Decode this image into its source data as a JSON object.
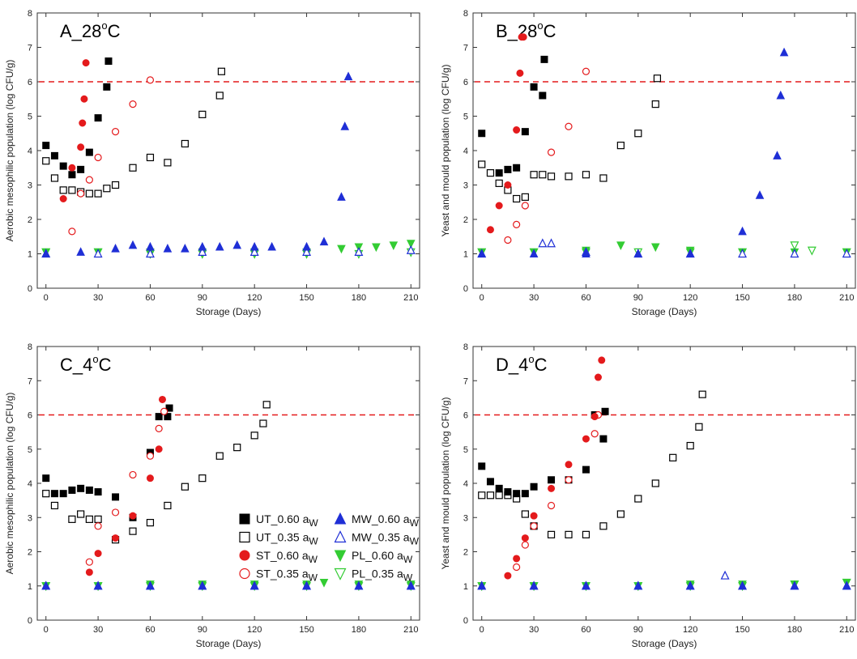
{
  "series_styles": [
    {
      "key": "UT_060",
      "label": "UT_0.60 aW",
      "label_main": "UT_0.60 a",
      "label_sub": "W",
      "color": "#000000",
      "marker": "square",
      "filled": true
    },
    {
      "key": "UT_035",
      "label": "UT_0.35 aW",
      "label_main": "UT_0.35 a",
      "label_sub": "W",
      "color": "#000000",
      "marker": "square",
      "filled": false
    },
    {
      "key": "ST_060",
      "label": "ST_0.60 aW",
      "label_main": "ST_0.60 a",
      "label_sub": "W",
      "color": "#e41a1c",
      "marker": "circle",
      "filled": true
    },
    {
      "key": "ST_035",
      "label": "ST_0.35 aW",
      "label_main": "ST_0.35 a",
      "label_sub": "W",
      "color": "#e41a1c",
      "marker": "circle",
      "filled": false
    },
    {
      "key": "MW_060",
      "label": "MW_0.60 aW",
      "label_main": "MW_0.60 a",
      "label_sub": "W",
      "color": "#1f2fd6",
      "marker": "triangle-up",
      "filled": true
    },
    {
      "key": "MW_035",
      "label": "MW_0.35 aW",
      "label_main": "MW_0.35 a",
      "label_sub": "W",
      "color": "#1f2fd6",
      "marker": "triangle-up",
      "filled": false
    },
    {
      "key": "PL_060",
      "label": "PL_0.60 aW",
      "label_main": "PL_0.60 a",
      "label_sub": "W",
      "color": "#33cc33",
      "marker": "triangle-down",
      "filled": true
    },
    {
      "key": "PL_035",
      "label": "PL_0.35 aW",
      "label_main": "PL_0.35 a",
      "label_sub": "W",
      "color": "#33cc33",
      "marker": "triangle-down",
      "filled": false
    }
  ],
  "chart_data": [
    {
      "id": "A",
      "type": "scatter",
      "title": "A_28",
      "title_sup": "o",
      "title_unit": "C",
      "xlabel": "Storage (Days)",
      "ylabel": "Aerobic mesophilic population (log CFU/g)",
      "xlim": [
        -5,
        215
      ],
      "ylim": [
        0,
        8
      ],
      "xticks": [
        0,
        30,
        60,
        90,
        120,
        150,
        180,
        210
      ],
      "yticks": [
        0,
        1,
        2,
        3,
        4,
        5,
        6,
        7,
        8
      ],
      "threshold": 6,
      "legend_position": "none",
      "series": [
        {
          "key": "UT_060",
          "x": [
            0,
            5,
            10,
            15,
            20,
            25,
            30,
            35,
            36
          ],
          "y": [
            4.15,
            3.85,
            3.55,
            3.3,
            3.45,
            3.95,
            4.95,
            5.85,
            6.6
          ]
        },
        {
          "key": "UT_035",
          "x": [
            0,
            5,
            10,
            15,
            20,
            25,
            30,
            35,
            40,
            50,
            60,
            70,
            80,
            90,
            100,
            101
          ],
          "y": [
            3.7,
            3.2,
            2.85,
            2.85,
            2.8,
            2.75,
            2.75,
            2.9,
            3.0,
            3.5,
            3.8,
            3.65,
            4.2,
            5.05,
            5.6,
            6.3
          ]
        },
        {
          "key": "ST_060",
          "x": [
            10,
            15,
            20,
            21,
            22,
            23
          ],
          "y": [
            2.6,
            3.5,
            4.1,
            4.8,
            5.5,
            6.55
          ]
        },
        {
          "key": "ST_035",
          "x": [
            15,
            20,
            25,
            30,
            40,
            50,
            60
          ],
          "y": [
            1.65,
            2.75,
            3.15,
            3.8,
            4.55,
            5.35,
            6.05
          ]
        },
        {
          "key": "MW_060",
          "x": [
            0,
            20,
            40,
            50,
            60,
            70,
            80,
            90,
            100,
            110,
            120,
            130,
            150,
            160,
            170,
            172,
            174
          ],
          "y": [
            1.0,
            1.05,
            1.15,
            1.25,
            1.2,
            1.15,
            1.15,
            1.2,
            1.2,
            1.25,
            1.2,
            1.2,
            1.2,
            1.35,
            2.65,
            4.7,
            6.15
          ]
        },
        {
          "key": "MW_035",
          "x": [
            0,
            30,
            60,
            90,
            120,
            150,
            180,
            210
          ],
          "y": [
            1.0,
            1.0,
            1.0,
            1.05,
            1.05,
            1.05,
            1.05,
            1.1
          ]
        },
        {
          "key": "PL_060",
          "x": [
            0,
            30,
            60,
            90,
            120,
            150,
            170,
            180,
            190,
            200,
            210
          ],
          "y": [
            1.05,
            1.05,
            1.05,
            1.05,
            1.05,
            1.05,
            1.15,
            1.2,
            1.2,
            1.25,
            1.3
          ]
        },
        {
          "key": "PL_035",
          "x": [
            0,
            30,
            60,
            90,
            120,
            150,
            180,
            210
          ],
          "y": [
            1.05,
            1.05,
            1.0,
            1.0,
            1.0,
            1.0,
            1.0,
            1.05
          ]
        }
      ]
    },
    {
      "id": "B",
      "type": "scatter",
      "title": "B_28",
      "title_sup": "o",
      "title_unit": "C",
      "xlabel": "Storage (Days)",
      "ylabel": "Yeast and mould population (log CFU/g)",
      "xlim": [
        -5,
        215
      ],
      "ylim": [
        0,
        8
      ],
      "xticks": [
        0,
        30,
        60,
        90,
        120,
        150,
        180,
        210
      ],
      "yticks": [
        0,
        1,
        2,
        3,
        4,
        5,
        6,
        7,
        8
      ],
      "threshold": 6,
      "legend_position": "none",
      "series": [
        {
          "key": "UT_060",
          "x": [
            0,
            10,
            15,
            20,
            25,
            30,
            35,
            36
          ],
          "y": [
            4.5,
            3.35,
            3.45,
            3.5,
            4.55,
            5.85,
            5.6,
            6.65
          ]
        },
        {
          "key": "UT_035",
          "x": [
            0,
            5,
            10,
            15,
            20,
            25,
            30,
            35,
            40,
            50,
            60,
            70,
            80,
            90,
            100,
            101
          ],
          "y": [
            3.6,
            3.35,
            3.05,
            2.85,
            2.6,
            2.65,
            3.3,
            3.3,
            3.25,
            3.25,
            3.3,
            3.2,
            4.15,
            4.5,
            5.35,
            6.1
          ]
        },
        {
          "key": "ST_060",
          "x": [
            5,
            10,
            15,
            20,
            22,
            23,
            24
          ],
          "y": [
            1.7,
            2.4,
            3.0,
            4.6,
            6.25,
            7.3,
            7.3
          ]
        },
        {
          "key": "ST_035",
          "x": [
            15,
            20,
            25,
            40,
            50,
            60
          ],
          "y": [
            1.4,
            1.85,
            2.4,
            3.95,
            4.7,
            6.3
          ]
        },
        {
          "key": "MW_060",
          "x": [
            0,
            30,
            60,
            90,
            120,
            150,
            160,
            170,
            172,
            174
          ],
          "y": [
            1.0,
            1.0,
            1.0,
            1.0,
            1.0,
            1.65,
            2.7,
            3.85,
            5.6,
            6.85
          ]
        },
        {
          "key": "MW_035",
          "x": [
            0,
            35,
            40,
            60,
            90,
            120,
            150,
            180,
            210
          ],
          "y": [
            1.0,
            1.3,
            1.3,
            1.05,
            1.0,
            1.0,
            1.0,
            1.0,
            1.0
          ]
        },
        {
          "key": "PL_060",
          "x": [
            0,
            30,
            60,
            80,
            100,
            120,
            150,
            180,
            210
          ],
          "y": [
            1.05,
            1.05,
            1.1,
            1.25,
            1.2,
            1.1,
            1.05,
            1.05,
            1.05
          ]
        },
        {
          "key": "PL_035",
          "x": [
            0,
            30,
            60,
            90,
            120,
            150,
            180,
            190,
            210
          ],
          "y": [
            1.05,
            1.05,
            1.05,
            1.05,
            1.05,
            1.05,
            1.25,
            1.1,
            1.05
          ]
        }
      ]
    },
    {
      "id": "C",
      "type": "scatter",
      "title": "C_4",
      "title_sup": "o",
      "title_unit": "C",
      "xlabel": "Storage (Days)",
      "ylabel": "Aerobic mesophilic population (log CFU/g)",
      "xlim": [
        -5,
        215
      ],
      "ylim": [
        0,
        8
      ],
      "xticks": [
        0,
        30,
        60,
        90,
        120,
        150,
        180,
        210
      ],
      "yticks": [
        0,
        1,
        2,
        3,
        4,
        5,
        6,
        7,
        8
      ],
      "threshold": 6,
      "legend_position": "center-right",
      "series": [
        {
          "key": "UT_060",
          "x": [
            0,
            5,
            10,
            15,
            20,
            25,
            30,
            40,
            50,
            60,
            65,
            70,
            71
          ],
          "y": [
            4.15,
            3.7,
            3.7,
            3.8,
            3.85,
            3.8,
            3.75,
            3.6,
            3.0,
            4.9,
            5.95,
            5.95,
            6.2
          ]
        },
        {
          "key": "UT_035",
          "x": [
            0,
            5,
            15,
            20,
            25,
            30,
            40,
            50,
            60,
            70,
            80,
            90,
            100,
            110,
            120,
            125,
            127
          ],
          "y": [
            3.7,
            3.35,
            2.95,
            3.1,
            2.95,
            2.95,
            2.35,
            2.6,
            2.85,
            3.35,
            3.9,
            4.15,
            4.8,
            5.05,
            5.4,
            5.75,
            6.3
          ]
        },
        {
          "key": "ST_060",
          "x": [
            25,
            30,
            40,
            50,
            60,
            65,
            67
          ],
          "y": [
            1.4,
            1.95,
            2.4,
            3.05,
            4.15,
            5.0,
            6.45
          ]
        },
        {
          "key": "ST_035",
          "x": [
            25,
            30,
            40,
            50,
            60,
            65,
            68
          ],
          "y": [
            1.7,
            2.75,
            3.15,
            4.25,
            4.8,
            5.6,
            6.1
          ]
        },
        {
          "key": "MW_060",
          "x": [
            0,
            30,
            60,
            90,
            120,
            150,
            180,
            210
          ],
          "y": [
            1.0,
            1.0,
            1.0,
            1.0,
            1.0,
            1.0,
            1.0,
            1.0
          ]
        },
        {
          "key": "MW_035",
          "x": [
            0,
            30,
            60,
            90,
            120,
            150,
            180,
            210
          ],
          "y": [
            1.0,
            1.0,
            1.0,
            1.0,
            1.0,
            1.0,
            1.0,
            1.0
          ]
        },
        {
          "key": "PL_060",
          "x": [
            0,
            30,
            60,
            90,
            120,
            150,
            160,
            180,
            210
          ],
          "y": [
            1.0,
            1.0,
            1.05,
            1.05,
            1.05,
            1.05,
            1.1,
            1.05,
            1.05
          ]
        },
        {
          "key": "PL_035",
          "x": [
            0,
            30,
            60,
            90,
            120,
            150,
            180,
            210
          ],
          "y": [
            1.0,
            1.0,
            1.0,
            1.0,
            1.0,
            1.0,
            1.0,
            1.0
          ]
        }
      ]
    },
    {
      "id": "D",
      "type": "scatter",
      "title": "D_4",
      "title_sup": "o",
      "title_unit": "C",
      "xlabel": "Storage (Days)",
      "ylabel": "Yeast and mould population (log CFU/g)",
      "xlim": [
        -5,
        215
      ],
      "ylim": [
        0,
        8
      ],
      "xticks": [
        0,
        30,
        60,
        90,
        120,
        150,
        180,
        210
      ],
      "yticks": [
        0,
        1,
        2,
        3,
        4,
        5,
        6,
        7,
        8
      ],
      "threshold": 6,
      "legend_position": "none",
      "series": [
        {
          "key": "UT_060",
          "x": [
            0,
            5,
            10,
            15,
            20,
            25,
            30,
            40,
            50,
            60,
            65,
            70,
            71
          ],
          "y": [
            4.5,
            4.05,
            3.85,
            3.75,
            3.7,
            3.7,
            3.9,
            4.1,
            4.1,
            4.4,
            6.0,
            5.3,
            6.1
          ]
        },
        {
          "key": "UT_035",
          "x": [
            0,
            5,
            10,
            15,
            20,
            25,
            30,
            40,
            50,
            60,
            70,
            80,
            90,
            100,
            110,
            120,
            125,
            127
          ],
          "y": [
            3.65,
            3.65,
            3.65,
            3.65,
            3.55,
            3.1,
            2.75,
            2.5,
            2.5,
            2.5,
            2.75,
            3.1,
            3.55,
            4.0,
            4.75,
            5.1,
            5.65,
            6.6
          ]
        },
        {
          "key": "ST_060",
          "x": [
            15,
            20,
            25,
            30,
            40,
            50,
            60,
            65,
            67,
            69
          ],
          "y": [
            1.3,
            1.8,
            2.4,
            3.05,
            3.85,
            4.55,
            5.3,
            5.95,
            7.1,
            7.6
          ]
        },
        {
          "key": "ST_035",
          "x": [
            20,
            25,
            30,
            40,
            50,
            65,
            67
          ],
          "y": [
            1.55,
            2.2,
            2.75,
            3.35,
            4.1,
            5.45,
            6.0
          ]
        },
        {
          "key": "MW_060",
          "x": [
            0,
            30,
            60,
            90,
            120,
            150,
            180,
            210
          ],
          "y": [
            1.0,
            1.0,
            1.0,
            1.0,
            1.0,
            1.0,
            1.0,
            1.0
          ]
        },
        {
          "key": "MW_035",
          "x": [
            0,
            30,
            60,
            90,
            120,
            140,
            150,
            180,
            210
          ],
          "y": [
            1.0,
            1.0,
            1.0,
            1.0,
            1.0,
            1.3,
            1.0,
            1.0,
            1.0
          ]
        },
        {
          "key": "PL_060",
          "x": [
            0,
            30,
            60,
            90,
            120,
            150,
            180,
            210
          ],
          "y": [
            1.0,
            1.0,
            1.0,
            1.0,
            1.05,
            1.05,
            1.05,
            1.1
          ]
        },
        {
          "key": "PL_035",
          "x": [
            0,
            30,
            60,
            90,
            120,
            150,
            180,
            210
          ],
          "y": [
            1.0,
            1.0,
            1.0,
            1.0,
            1.0,
            1.0,
            1.05,
            1.1
          ]
        }
      ]
    }
  ]
}
